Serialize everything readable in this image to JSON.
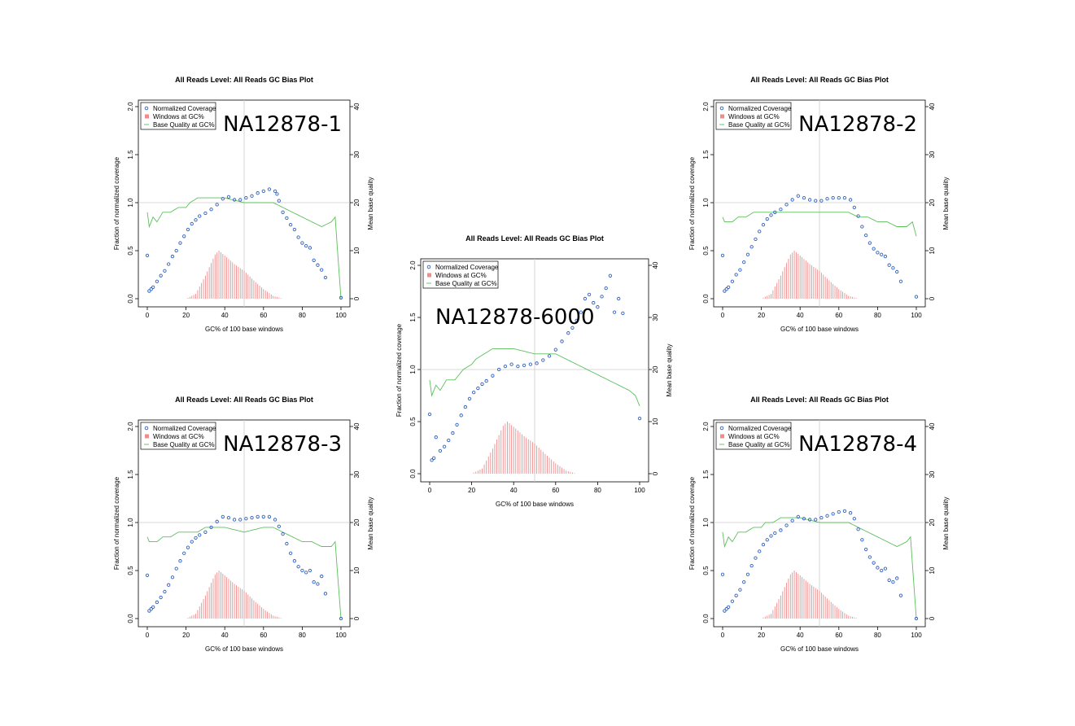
{
  "figure": {
    "colors": {
      "coverage": "#2d5fbf",
      "windows": "#f08c8c",
      "quality": "#5cbf5c",
      "grid": "#cccccc"
    }
  },
  "chart_data": [
    {
      "type": "scatter",
      "sample_label": "NA12878-1",
      "title": "All Reads Level: All Reads  GC Bias Plot",
      "xlabel": "GC% of 100 base windows",
      "ylabel": "Fraction of normalized coverage",
      "y2label": "Mean base quality",
      "xlim": [
        0,
        100
      ],
      "ylim": [
        0,
        2
      ],
      "y2lim": [
        0,
        40
      ],
      "xticks": [
        "0",
        "20",
        "40",
        "60",
        "80",
        "100"
      ],
      "yticks": [
        "0.0",
        "0.5",
        "1.0",
        "1.5",
        "2.0"
      ],
      "y2ticks": [
        "0",
        "10",
        "20",
        "30",
        "40"
      ],
      "legend": [
        "Normalized Coverage",
        "Windows at GC%",
        "Base Quality at GC%"
      ],
      "legend_position": "top-left",
      "series": [
        {
          "name": "Normalized Coverage",
          "x": [
            0,
            1,
            2,
            3,
            5,
            7,
            9,
            11,
            13,
            15,
            17,
            19,
            21,
            23,
            25,
            27,
            30,
            33,
            36,
            39,
            42,
            45,
            48,
            51,
            54,
            57,
            60,
            63,
            66,
            67,
            68,
            70,
            72,
            74,
            76,
            78,
            80,
            82,
            84,
            86,
            88,
            90,
            92,
            100
          ],
          "y": [
            0.45,
            0.08,
            0.1,
            0.12,
            0.18,
            0.24,
            0.29,
            0.36,
            0.44,
            0.5,
            0.58,
            0.65,
            0.72,
            0.78,
            0.82,
            0.86,
            0.89,
            0.93,
            0.98,
            1.04,
            1.06,
            1.03,
            1.03,
            1.05,
            1.07,
            1.1,
            1.12,
            1.14,
            1.12,
            1.09,
            1.02,
            0.9,
            0.84,
            0.77,
            0.72,
            0.64,
            0.58,
            0.55,
            0.53,
            0.4,
            0.35,
            0.3,
            0.22,
            0.01
          ]
        },
        {
          "name": "Windows at GC%",
          "x": [
            20,
            25,
            30,
            35,
            37,
            40,
            45,
            50,
            55,
            60,
            65,
            70
          ],
          "y": [
            0.0,
            0.05,
            0.24,
            0.46,
            0.5,
            0.45,
            0.36,
            0.29,
            0.19,
            0.1,
            0.03,
            0.0
          ]
        },
        {
          "name": "Base Quality at GC%",
          "x": [
            0,
            1,
            3,
            5,
            8,
            12,
            16,
            20,
            22,
            26,
            30,
            40,
            50,
            60,
            65,
            70,
            75,
            80,
            85,
            90,
            95,
            97,
            100
          ],
          "y": [
            18,
            15,
            17,
            16,
            18,
            18,
            19,
            19,
            20,
            21,
            21,
            21,
            20,
            20,
            20,
            19,
            18,
            17,
            16,
            15,
            16,
            17,
            0
          ]
        }
      ]
    },
    {
      "type": "scatter",
      "sample_label": "NA12878-2",
      "title": "All Reads Level: All Reads  GC Bias Plot",
      "xlabel": "GC% of 100 base windows",
      "ylabel": "Fraction of normalized coverage",
      "y2label": "Mean base quality",
      "xlim": [
        0,
        100
      ],
      "ylim": [
        0,
        2
      ],
      "y2lim": [
        0,
        40
      ],
      "xticks": [
        "0",
        "20",
        "40",
        "60",
        "80",
        "100"
      ],
      "yticks": [
        "0.0",
        "0.5",
        "1.0",
        "1.5",
        "2.0"
      ],
      "y2ticks": [
        "0",
        "10",
        "20",
        "30",
        "40"
      ],
      "legend": [
        "Normalized Coverage",
        "Windows at GC%",
        "Base Quality at GC%"
      ],
      "legend_position": "top-left",
      "series": [
        {
          "name": "Normalized Coverage",
          "x": [
            0,
            1,
            2,
            3,
            5,
            7,
            9,
            11,
            13,
            15,
            17,
            19,
            21,
            23,
            25,
            27,
            30,
            33,
            36,
            39,
            42,
            45,
            48,
            51,
            54,
            57,
            60,
            63,
            66,
            68,
            70,
            72,
            74,
            76,
            78,
            80,
            82,
            84,
            86,
            88,
            90,
            92,
            100
          ],
          "y": [
            0.45,
            0.08,
            0.1,
            0.12,
            0.18,
            0.25,
            0.3,
            0.38,
            0.46,
            0.54,
            0.62,
            0.7,
            0.77,
            0.83,
            0.87,
            0.9,
            0.93,
            0.98,
            1.03,
            1.07,
            1.05,
            1.03,
            1.02,
            1.02,
            1.04,
            1.05,
            1.05,
            1.05,
            1.03,
            0.95,
            0.86,
            0.75,
            0.66,
            0.58,
            0.52,
            0.48,
            0.46,
            0.44,
            0.35,
            0.32,
            0.28,
            0.18,
            0.02
          ]
        },
        {
          "name": "Windows at GC%",
          "x": [
            20,
            25,
            30,
            35,
            37,
            40,
            45,
            50,
            55,
            60,
            65,
            70
          ],
          "y": [
            0.0,
            0.05,
            0.24,
            0.46,
            0.5,
            0.45,
            0.36,
            0.29,
            0.19,
            0.1,
            0.03,
            0.0
          ]
        },
        {
          "name": "Base Quality at GC%",
          "x": [
            0,
            1,
            3,
            5,
            8,
            12,
            16,
            20,
            22,
            26,
            30,
            40,
            50,
            60,
            65,
            70,
            75,
            80,
            85,
            90,
            95,
            98,
            100
          ],
          "y": [
            17,
            16,
            16,
            16,
            17,
            17,
            18,
            18,
            18,
            18,
            18,
            18,
            18,
            18,
            18,
            17,
            17,
            16,
            16,
            15,
            15,
            16,
            13
          ]
        }
      ]
    },
    {
      "type": "scatter",
      "sample_label": "NA12878-6000",
      "title": "All Reads Level: All Reads  GC Bias Plot",
      "xlabel": "GC% of 100 base windows",
      "ylabel": "Fraction of normalized coverage",
      "y2label": "Mean base quality",
      "xlim": [
        0,
        100
      ],
      "ylim": [
        0,
        2
      ],
      "y2lim": [
        0,
        40
      ],
      "xticks": [
        "0",
        "20",
        "40",
        "60",
        "80",
        "100"
      ],
      "yticks": [
        "0.0",
        "0.5",
        "1.0",
        "1.5",
        "2.0"
      ],
      "y2ticks": [
        "0",
        "10",
        "20",
        "30",
        "40"
      ],
      "legend": [
        "Normalized Coverage",
        "Windows at GC%",
        "Base Quality at GC%"
      ],
      "legend_position": "top-left",
      "series": [
        {
          "name": "Normalized Coverage",
          "x": [
            0,
            1,
            2,
            3,
            5,
            7,
            9,
            11,
            13,
            15,
            17,
            19,
            21,
            23,
            25,
            27,
            30,
            33,
            36,
            39,
            42,
            45,
            48,
            51,
            54,
            57,
            60,
            63,
            66,
            68,
            70,
            72,
            74,
            76,
            78,
            80,
            82,
            84,
            86,
            88,
            90,
            92,
            100
          ],
          "y": [
            0.57,
            0.13,
            0.15,
            0.35,
            0.22,
            0.26,
            0.32,
            0.39,
            0.47,
            0.56,
            0.64,
            0.72,
            0.78,
            0.82,
            0.86,
            0.89,
            0.94,
            1.0,
            1.03,
            1.05,
            1.03,
            1.04,
            1.05,
            1.06,
            1.09,
            1.13,
            1.19,
            1.27,
            1.35,
            1.4,
            1.47,
            1.55,
            1.68,
            1.72,
            1.64,
            1.6,
            1.7,
            1.78,
            1.9,
            1.55,
            1.68,
            1.54,
            0.53
          ]
        },
        {
          "name": "Windows at GC%",
          "x": [
            20,
            25,
            30,
            35,
            37,
            40,
            45,
            50,
            55,
            60,
            65,
            70
          ],
          "y": [
            0.0,
            0.05,
            0.24,
            0.46,
            0.5,
            0.45,
            0.36,
            0.29,
            0.19,
            0.1,
            0.03,
            0.0
          ]
        },
        {
          "name": "Base Quality at GC%",
          "x": [
            0,
            1,
            3,
            5,
            8,
            12,
            16,
            20,
            22,
            26,
            30,
            40,
            50,
            60,
            65,
            70,
            75,
            80,
            85,
            90,
            95,
            98,
            100
          ],
          "y": [
            18,
            15,
            17,
            16,
            18,
            18,
            20,
            21,
            22,
            23,
            24,
            24,
            23,
            23,
            22,
            21,
            20,
            19,
            18,
            17,
            16,
            15,
            13
          ]
        }
      ]
    },
    {
      "type": "scatter",
      "sample_label": "NA12878-3",
      "title": "All Reads Level: All Reads  GC Bias Plot",
      "xlabel": "GC% of 100 base windows",
      "ylabel": "Fraction of normalized coverage",
      "y2label": "Mean base quality",
      "xlim": [
        0,
        100
      ],
      "ylim": [
        0,
        2
      ],
      "y2lim": [
        0,
        40
      ],
      "xticks": [
        "0",
        "20",
        "40",
        "60",
        "80",
        "100"
      ],
      "yticks": [
        "0.0",
        "0.5",
        "1.0",
        "1.5",
        "2.0"
      ],
      "y2ticks": [
        "0",
        "10",
        "20",
        "30",
        "40"
      ],
      "legend": [
        "Normalized Coverage",
        "Windows at GC%",
        "Base Quality at GC%"
      ],
      "legend_position": "top-left",
      "series": [
        {
          "name": "Normalized Coverage",
          "x": [
            0,
            1,
            2,
            3,
            5,
            7,
            9,
            11,
            13,
            15,
            17,
            19,
            21,
            23,
            25,
            27,
            30,
            33,
            36,
            39,
            42,
            45,
            48,
            51,
            54,
            57,
            60,
            63,
            66,
            68,
            70,
            72,
            74,
            76,
            78,
            80,
            82,
            84,
            86,
            88,
            90,
            92,
            100
          ],
          "y": [
            0.45,
            0.08,
            0.1,
            0.12,
            0.17,
            0.22,
            0.28,
            0.35,
            0.43,
            0.52,
            0.6,
            0.68,
            0.74,
            0.8,
            0.84,
            0.87,
            0.9,
            0.95,
            1.01,
            1.06,
            1.05,
            1.03,
            1.03,
            1.04,
            1.05,
            1.06,
            1.06,
            1.06,
            1.03,
            0.96,
            0.88,
            0.78,
            0.68,
            0.6,
            0.54,
            0.5,
            0.48,
            0.5,
            0.38,
            0.36,
            0.44,
            0.26,
            0.0
          ]
        },
        {
          "name": "Windows at GC%",
          "x": [
            20,
            25,
            30,
            35,
            37,
            40,
            45,
            50,
            55,
            60,
            65,
            70
          ],
          "y": [
            0.0,
            0.05,
            0.24,
            0.46,
            0.5,
            0.45,
            0.36,
            0.29,
            0.19,
            0.1,
            0.03,
            0.0
          ]
        },
        {
          "name": "Base Quality at GC%",
          "x": [
            0,
            1,
            3,
            5,
            8,
            12,
            16,
            20,
            22,
            26,
            30,
            40,
            50,
            60,
            65,
            70,
            75,
            80,
            85,
            90,
            95,
            97,
            100
          ],
          "y": [
            17,
            16,
            16,
            16,
            17,
            17,
            18,
            18,
            18,
            18,
            19,
            19,
            18,
            19,
            19,
            18,
            17,
            16,
            16,
            15,
            15,
            16,
            0
          ]
        }
      ]
    },
    {
      "type": "scatter",
      "sample_label": "NA12878-4",
      "title": "All Reads Level: All Reads  GC Bias Plot",
      "xlabel": "GC% of 100 base windows",
      "ylabel": "Fraction of normalized coverage",
      "y2label": "Mean base quality",
      "xlim": [
        0,
        100
      ],
      "ylim": [
        0,
        2
      ],
      "y2lim": [
        0,
        40
      ],
      "xticks": [
        "0",
        "20",
        "40",
        "60",
        "80",
        "100"
      ],
      "yticks": [
        "0.0",
        "0.5",
        "1.0",
        "1.5",
        "2.0"
      ],
      "y2ticks": [
        "0",
        "10",
        "20",
        "30",
        "40"
      ],
      "legend": [
        "Normalized Coverage",
        "Windows at GC%",
        "Base Quality at GC%"
      ],
      "legend_position": "top-left",
      "series": [
        {
          "name": "Normalized Coverage",
          "x": [
            0,
            1,
            2,
            3,
            5,
            7,
            9,
            11,
            13,
            15,
            17,
            19,
            21,
            23,
            25,
            27,
            30,
            33,
            36,
            39,
            42,
            45,
            48,
            51,
            54,
            57,
            60,
            63,
            66,
            68,
            70,
            72,
            74,
            76,
            78,
            80,
            82,
            84,
            86,
            88,
            90,
            92,
            100
          ],
          "y": [
            0.46,
            0.08,
            0.1,
            0.12,
            0.18,
            0.24,
            0.3,
            0.38,
            0.46,
            0.55,
            0.63,
            0.7,
            0.77,
            0.82,
            0.86,
            0.89,
            0.92,
            0.97,
            1.02,
            1.06,
            1.04,
            1.03,
            1.03,
            1.05,
            1.07,
            1.09,
            1.11,
            1.12,
            1.1,
            1.04,
            0.93,
            0.82,
            0.72,
            0.64,
            0.58,
            0.53,
            0.5,
            0.52,
            0.4,
            0.38,
            0.42,
            0.24,
            0.0
          ]
        },
        {
          "name": "Windows at GC%",
          "x": [
            20,
            25,
            30,
            35,
            37,
            40,
            45,
            50,
            55,
            60,
            65,
            70
          ],
          "y": [
            0.0,
            0.05,
            0.24,
            0.46,
            0.5,
            0.45,
            0.36,
            0.29,
            0.19,
            0.1,
            0.03,
            0.0
          ]
        },
        {
          "name": "Base Quality at GC%",
          "x": [
            0,
            1,
            3,
            5,
            8,
            12,
            16,
            20,
            22,
            26,
            30,
            40,
            50,
            60,
            65,
            70,
            75,
            80,
            85,
            90,
            95,
            97,
            100
          ],
          "y": [
            18,
            15,
            17,
            16,
            18,
            18,
            19,
            19,
            20,
            20,
            21,
            21,
            20,
            20,
            20,
            19,
            18,
            17,
            16,
            15,
            16,
            17,
            0
          ]
        }
      ]
    }
  ]
}
